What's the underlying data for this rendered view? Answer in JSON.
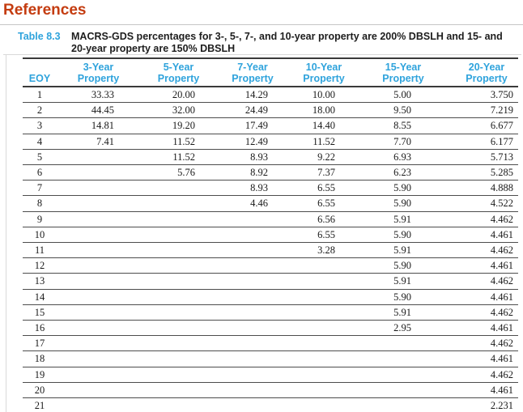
{
  "page": {
    "title": "References"
  },
  "caption": {
    "label": "Table 8.3",
    "lines": [
      "MACRS-GDS percentages for 3-, 5-, 7-, and 10-year property are 200% DBSLH and 15- and",
      "20-year property are 150% DBSLH"
    ]
  },
  "colors": {
    "heading_red": "#c43c10",
    "accent_blue": "#2fa3dc",
    "body_text": "#1a1a1a",
    "rule_dark": "#3a3a3a",
    "rule_light": "#d9d9d9"
  },
  "chart_data": {
    "type": "table",
    "table_number": "Table 8.3",
    "title": "MACRS-GDS percentages for 3-, 5-, 7-, and 10-year property are 200% DBSLH and 15- and 20-year property are 150% DBSLH",
    "columns": [
      "EOY",
      "3-Year Property",
      "5-Year Property",
      "7-Year Property",
      "10-Year Property",
      "15-Year Property",
      "20-Year Property"
    ],
    "header_lines": [
      [
        "",
        "EOY"
      ],
      [
        "3-Year",
        "Property"
      ],
      [
        "5-Year",
        "Property"
      ],
      [
        "7-Year",
        "Property"
      ],
      [
        "10-Year",
        "Property"
      ],
      [
        "15-Year",
        "Property"
      ],
      [
        "20-Year",
        "Property"
      ]
    ],
    "rows": [
      [
        "1",
        "33.33",
        "20.00",
        "14.29",
        "10.00",
        "5.00",
        "3.750"
      ],
      [
        "2",
        "44.45",
        "32.00",
        "24.49",
        "18.00",
        "9.50",
        "7.219"
      ],
      [
        "3",
        "14.81",
        "19.20",
        "17.49",
        "14.40",
        "8.55",
        "6.677"
      ],
      [
        "4",
        "7.41",
        "11.52",
        "12.49",
        "11.52",
        "7.70",
        "6.177"
      ],
      [
        "5",
        "",
        "11.52",
        "8.93",
        "9.22",
        "6.93",
        "5.713"
      ],
      [
        "6",
        "",
        "5.76",
        "8.92",
        "7.37",
        "6.23",
        "5.285"
      ],
      [
        "7",
        "",
        "",
        "8.93",
        "6.55",
        "5.90",
        "4.888"
      ],
      [
        "8",
        "",
        "",
        "4.46",
        "6.55",
        "5.90",
        "4.522"
      ],
      [
        "9",
        "",
        "",
        "",
        "6.56",
        "5.91",
        "4.462"
      ],
      [
        "10",
        "",
        "",
        "",
        "6.55",
        "5.90",
        "4.461"
      ],
      [
        "11",
        "",
        "",
        "",
        "3.28",
        "5.91",
        "4.462"
      ],
      [
        "12",
        "",
        "",
        "",
        "",
        "5.90",
        "4.461"
      ],
      [
        "13",
        "",
        "",
        "",
        "",
        "5.91",
        "4.462"
      ],
      [
        "14",
        "",
        "",
        "",
        "",
        "5.90",
        "4.461"
      ],
      [
        "15",
        "",
        "",
        "",
        "",
        "5.91",
        "4.462"
      ],
      [
        "16",
        "",
        "",
        "",
        "",
        "2.95",
        "4.461"
      ],
      [
        "17",
        "",
        "",
        "",
        "",
        "",
        "4.462"
      ],
      [
        "18",
        "",
        "",
        "",
        "",
        "",
        "4.461"
      ],
      [
        "19",
        "",
        "",
        "",
        "",
        "",
        "4.462"
      ],
      [
        "20",
        "",
        "",
        "",
        "",
        "",
        "4.461"
      ],
      [
        "21",
        "",
        "",
        "",
        "",
        "",
        "2.231"
      ]
    ]
  }
}
